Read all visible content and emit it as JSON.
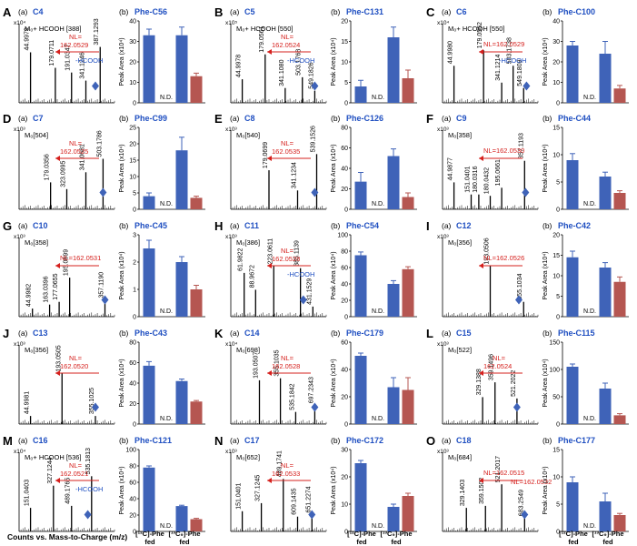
{
  "bottom_labels": {
    "left": "Counts vs. Mass-to-Charge (m/z)",
    "b1": [
      "[¹²C]-Phe",
      "fed"
    ],
    "b2": [
      "[¹³C₉]-Phe",
      "fed"
    ]
  },
  "colors": {
    "blue": "#3f63b8",
    "red": "#b55651",
    "label_blue": "#1f4fc1",
    "annot_red": "#d5201d"
  },
  "chart_data": [
    {
      "letter": "A",
      "compound": "C4",
      "header": "M₀+ HCOOH [388]",
      "exp": "x10⁴",
      "nl": "162.0529",
      "nl_inline": false,
      "hcooh": true,
      "peaks": [
        {
          "x": 0.12,
          "h": 0.75,
          "label": "44.9979"
        },
        {
          "x": 0.38,
          "h": 0.52,
          "label": "179.0711"
        },
        {
          "x": 0.55,
          "h": 0.45,
          "label": "191.0347"
        },
        {
          "x": 0.7,
          "h": 0.33,
          "label": "341.1246"
        },
        {
          "x": 0.85,
          "h": 0.83,
          "label": "387.1293"
        }
      ],
      "diamond": 0.8,
      "phe": "Phe-C56",
      "ymax": 40,
      "ticks": [
        0,
        10,
        20,
        30,
        40
      ],
      "ylabel": "Peak Area (x10⁴)",
      "values": [
        33,
        0,
        33,
        13
      ],
      "errors": [
        3,
        0,
        4,
        1.5
      ]
    },
    {
      "letter": "B",
      "compound": "C5",
      "header": "M₀+ HCOOH [550]",
      "exp": "x10⁵",
      "nl": "162.0524",
      "nl_inline": false,
      "hcooh": true,
      "peaks": [
        {
          "x": 0.12,
          "h": 0.35,
          "label": "44.9978"
        },
        {
          "x": 0.36,
          "h": 0.72,
          "label": "179.0561"
        },
        {
          "x": 0.57,
          "h": 0.22,
          "label": "341.1080"
        },
        {
          "x": 0.75,
          "h": 0.38,
          "label": "503.1768"
        },
        {
          "x": 0.88,
          "h": 0.18,
          "label": "549.1826"
        }
      ],
      "diamond": 0.88,
      "phe": "Phe-C131",
      "ymax": 20,
      "ticks": [
        0,
        5,
        10,
        15,
        20
      ],
      "ylabel": "Peak Area (x10⁴)",
      "values": [
        4,
        0,
        16,
        6
      ],
      "errors": [
        1.5,
        0,
        2.5,
        2
      ]
    },
    {
      "letter": "C",
      "compound": "C6",
      "header": "M₀+ HCOOH [550]",
      "exp": "x10⁴",
      "nl": "162.0529",
      "nl_inline": true,
      "hcooh": true,
      "peaks": [
        {
          "x": 0.12,
          "h": 0.55,
          "label": "44.9980"
        },
        {
          "x": 0.43,
          "h": 0.78,
          "label": "179.0562"
        },
        {
          "x": 0.62,
          "h": 0.3,
          "label": "341.1214"
        },
        {
          "x": 0.74,
          "h": 0.55,
          "label": "503.1738"
        },
        {
          "x": 0.85,
          "h": 0.22,
          "label": "549.1809"
        }
      ],
      "diamond": 0.88,
      "phe": "Phe-C100",
      "ymax": 40,
      "ticks": [
        0,
        10,
        20,
        30,
        40
      ],
      "ylabel": "Peak Area (x10⁴)",
      "values": [
        28,
        0,
        24,
        7
      ],
      "errors": [
        2,
        0,
        6,
        1.5
      ]
    },
    {
      "letter": "D",
      "compound": "C7",
      "header": "M₀[504]",
      "exp": "x10³",
      "nl": "162.0525",
      "nl_inline": false,
      "hcooh": false,
      "peaks": [
        {
          "x": 0.33,
          "h": 0.4,
          "label": "179.0356"
        },
        {
          "x": 0.5,
          "h": 0.3,
          "label": "323.0995"
        },
        {
          "x": 0.7,
          "h": 0.55,
          "label": "341.0681"
        },
        {
          "x": 0.88,
          "h": 0.75,
          "label": "503.1786"
        }
      ],
      "diamond": 0.88,
      "phe": "Phe-C99",
      "ymax": 25,
      "ticks": [
        0,
        5,
        10,
        15,
        20,
        25
      ],
      "ylabel": "Peak Area (x10⁴)",
      "values": [
        4,
        0,
        18,
        3.5
      ],
      "errors": [
        1,
        0,
        4,
        0.5
      ]
    },
    {
      "letter": "E",
      "compound": "C8",
      "header": "M₀[540]",
      "exp": "x10³",
      "nl": "162.0535",
      "nl_inline": false,
      "hcooh": false,
      "peaks": [
        {
          "x": 0.4,
          "h": 0.58,
          "label": "179.0699"
        },
        {
          "x": 0.7,
          "h": 0.28,
          "label": "341.1234"
        },
        {
          "x": 0.9,
          "h": 0.82,
          "label": "539.1526"
        }
      ],
      "diamond": 0.88,
      "phe": "Phe-C126",
      "ymax": 80,
      "ticks": [
        0,
        20,
        40,
        60,
        80
      ],
      "ylabel": "Peak Area (x10⁴)",
      "values": [
        27,
        0,
        52,
        12
      ],
      "errors": [
        9,
        0,
        7,
        4
      ]
    },
    {
      "letter": "F",
      "compound": "C9",
      "header": "M₀[358]",
      "exp": "x10³",
      "nl": "162.0530",
      "nl_inline": true,
      "hcooh": false,
      "peaks": [
        {
          "x": 0.12,
          "h": 0.4,
          "label": "44.9877"
        },
        {
          "x": 0.3,
          "h": 0.22,
          "label": "151.0401"
        },
        {
          "x": 0.38,
          "h": 0.22,
          "label": "180.0316"
        },
        {
          "x": 0.5,
          "h": 0.2,
          "label": "180.0432"
        },
        {
          "x": 0.62,
          "h": 0.32,
          "label": "195.0661"
        },
        {
          "x": 0.86,
          "h": 0.72,
          "label": "357.1193"
        }
      ],
      "diamond": 0.87,
      "phe": "Phe-C44",
      "ymax": 15,
      "ticks": [
        0,
        5,
        10,
        15
      ],
      "ylabel": "Peak Area (x10⁴)",
      "values": [
        9,
        0,
        6,
        3
      ],
      "errors": [
        1.2,
        0,
        0.8,
        0.4
      ]
    },
    {
      "letter": "G",
      "compound": "C10",
      "header": "M₀[358]",
      "exp": "x10³",
      "nl": "162.0531",
      "nl_inline": true,
      "hcooh": false,
      "peaks": [
        {
          "x": 0.14,
          "h": 0.12,
          "label": "44.9982"
        },
        {
          "x": 0.32,
          "h": 0.18,
          "label": "163.0396"
        },
        {
          "x": 0.42,
          "h": 0.22,
          "label": "177.0655"
        },
        {
          "x": 0.53,
          "h": 0.58,
          "label": "195.0699"
        },
        {
          "x": 0.9,
          "h": 0.25,
          "label": "357.1190"
        }
      ],
      "diamond": 0.9,
      "phe": "Phe-C45",
      "ymax": 3,
      "ticks": [
        0,
        1,
        2,
        3
      ],
      "ylabel": "Peak Area (x10⁴)",
      "values": [
        2.5,
        0,
        2.0,
        1.0
      ],
      "errors": [
        0.3,
        0,
        0.2,
        0.15
      ]
    },
    {
      "letter": "H",
      "compound": "C11",
      "header": "M₀[386]",
      "exp": "x10³",
      "nl": "162.0528",
      "nl_inline": false,
      "hcooh": true,
      "peaks": [
        {
          "x": 0.14,
          "h": 0.65,
          "label": "61.9822"
        },
        {
          "x": 0.26,
          "h": 0.4,
          "label": "88.9672"
        },
        {
          "x": 0.45,
          "h": 0.75,
          "label": "223.0611"
        },
        {
          "x": 0.73,
          "h": 0.72,
          "label": "385.1139"
        },
        {
          "x": 0.86,
          "h": 0.15,
          "label": "431.1529"
        }
      ],
      "diamond": 0.76,
      "phe": "Phe-C54",
      "ymax": 100,
      "ticks": [
        0,
        20,
        40,
        60,
        80,
        100
      ],
      "ylabel": "Peak Area (x10⁴)",
      "values": [
        75,
        0,
        40,
        58
      ],
      "errors": [
        4,
        0,
        4,
        3
      ]
    },
    {
      "letter": "I",
      "compound": "C12",
      "header": "M₀[356]",
      "exp": "x10³",
      "nl": "162.0526",
      "nl_inline": true,
      "hcooh": false,
      "peaks": [
        {
          "x": 0.5,
          "h": 0.75,
          "label": "193.0506"
        },
        {
          "x": 0.85,
          "h": 0.22,
          "label": "355.1034"
        }
      ],
      "diamond": 0.8,
      "phe": "Phe-C42",
      "ymax": 20,
      "ticks": [
        0,
        5,
        10,
        15,
        20
      ],
      "ylabel": "Peak Area (x10⁴)",
      "values": [
        14.5,
        0,
        12,
        8.5
      ],
      "errors": [
        1.5,
        0,
        1.2,
        1.2
      ]
    },
    {
      "letter": "J",
      "compound": "C13",
      "header": "M₀[356]",
      "exp": "x10³",
      "nl": "162.0520",
      "nl_inline": false,
      "hcooh": false,
      "peaks": [
        {
          "x": 0.12,
          "h": 0.12,
          "label": "44.9981"
        },
        {
          "x": 0.45,
          "h": 0.75,
          "label": "193.0505"
        },
        {
          "x": 0.8,
          "h": 0.12,
          "label": "355.1025"
        }
      ],
      "diamond": 0.8,
      "phe": "Phe-C43",
      "ymax": 80,
      "ticks": [
        0,
        20,
        40,
        60,
        80
      ],
      "ylabel": "Peak Area (x10⁴)",
      "values": [
        57,
        0,
        42,
        22
      ],
      "errors": [
        4,
        0,
        2,
        1
      ]
    },
    {
      "letter": "K",
      "compound": "C14",
      "header": "M₀[698]",
      "exp": "x10⁴",
      "nl": "162.0528",
      "nl_inline": false,
      "hcooh": false,
      "peaks": [
        {
          "x": 0.3,
          "h": 0.65,
          "label": "193.0507"
        },
        {
          "x": 0.52,
          "h": 0.68,
          "label": "355.1035"
        },
        {
          "x": 0.68,
          "h": 0.18,
          "label": "535.1842"
        },
        {
          "x": 0.88,
          "h": 0.28,
          "label": "697.2343"
        }
      ],
      "diamond": 0.88,
      "phe": "Phe-C179",
      "ymax": 60,
      "ticks": [
        0,
        20,
        40,
        60
      ],
      "ylabel": "Peak Area (x10⁴)",
      "values": [
        50,
        0,
        27,
        25
      ],
      "errors": [
        2,
        0,
        7,
        9
      ]
    },
    {
      "letter": "L",
      "compound": "C15",
      "header": "M₀[522]",
      "exp": "x10³",
      "nl": "162.0524",
      "nl_inline": false,
      "hcooh": false,
      "peaks": [
        {
          "x": 0.42,
          "h": 0.4,
          "label": "329.1388"
        },
        {
          "x": 0.55,
          "h": 0.62,
          "label": "359.1496"
        },
        {
          "x": 0.78,
          "h": 0.38,
          "label": "521.2022"
        }
      ],
      "diamond": 0.78,
      "phe": "Phe-C115",
      "ymax": 150,
      "ticks": [
        0,
        50,
        100,
        150
      ],
      "ylabel": "Peak Area (x10⁴)",
      "values": [
        105,
        0,
        65,
        16
      ],
      "errors": [
        5,
        0,
        10,
        3
      ]
    },
    {
      "letter": "M",
      "compound": "C16",
      "header": "M₀+ HCOOH [536]",
      "exp": "x10⁴",
      "nl": "162.0521",
      "nl_inline": false,
      "hcooh": true,
      "peaks": [
        {
          "x": 0.12,
          "h": 0.35,
          "label": "151.0403"
        },
        {
          "x": 0.36,
          "h": 0.68,
          "label": "327.1244"
        },
        {
          "x": 0.55,
          "h": 0.38,
          "label": "489.1765"
        },
        {
          "x": 0.76,
          "h": 0.82,
          "label": "535.1813"
        }
      ],
      "diamond": 0.72,
      "phe": "Phe-C121",
      "ymax": 100,
      "ticks": [
        0,
        20,
        40,
        60,
        80,
        100
      ],
      "ylabel": "Peak Area (x10⁴)",
      "values": [
        78,
        0,
        31,
        15
      ],
      "errors": [
        2,
        0,
        1,
        1
      ]
    },
    {
      "letter": "N",
      "compound": "C17",
      "header": "M₀[652]",
      "exp": "x10³",
      "nl": "162.0533",
      "nl_inline": false,
      "hcooh": false,
      "peaks": [
        {
          "x": 0.12,
          "h": 0.3,
          "label": "151.0401"
        },
        {
          "x": 0.32,
          "h": 0.42,
          "label": "327.1245"
        },
        {
          "x": 0.55,
          "h": 0.78,
          "label": "489.1741"
        },
        {
          "x": 0.7,
          "h": 0.22,
          "label": "609.1435"
        },
        {
          "x": 0.85,
          "h": 0.25,
          "label": "651.2274"
        }
      ],
      "diamond": 0.85,
      "phe": "Phe-C172",
      "ymax": 30,
      "ticks": [
        0,
        10,
        20,
        30
      ],
      "ylabel": "Peak Area (x10⁴)",
      "values": [
        25,
        0,
        9,
        13
      ],
      "errors": [
        1,
        0,
        1,
        1
      ]
    },
    {
      "letter": "O",
      "compound": "C18",
      "header": "M₀[684]",
      "exp": "x10³",
      "nl": "162.0515",
      "nl2": "162.0532",
      "nl_inline": true,
      "hcooh": false,
      "peaks": [
        {
          "x": 0.25,
          "h": 0.35,
          "label": "329.1403"
        },
        {
          "x": 0.45,
          "h": 0.38,
          "label": "359.1502"
        },
        {
          "x": 0.62,
          "h": 0.7,
          "label": "521.2017"
        },
        {
          "x": 0.86,
          "h": 0.2,
          "label": "683.2549"
        }
      ],
      "diamond": 0.86,
      "phe": "Phe-C177",
      "ymax": 15,
      "ticks": [
        0,
        5,
        10,
        15
      ],
      "ylabel": "Peak Area (x10⁴)",
      "values": [
        9,
        0,
        5.5,
        3
      ],
      "errors": [
        1,
        0,
        1.5,
        0.3
      ]
    }
  ]
}
